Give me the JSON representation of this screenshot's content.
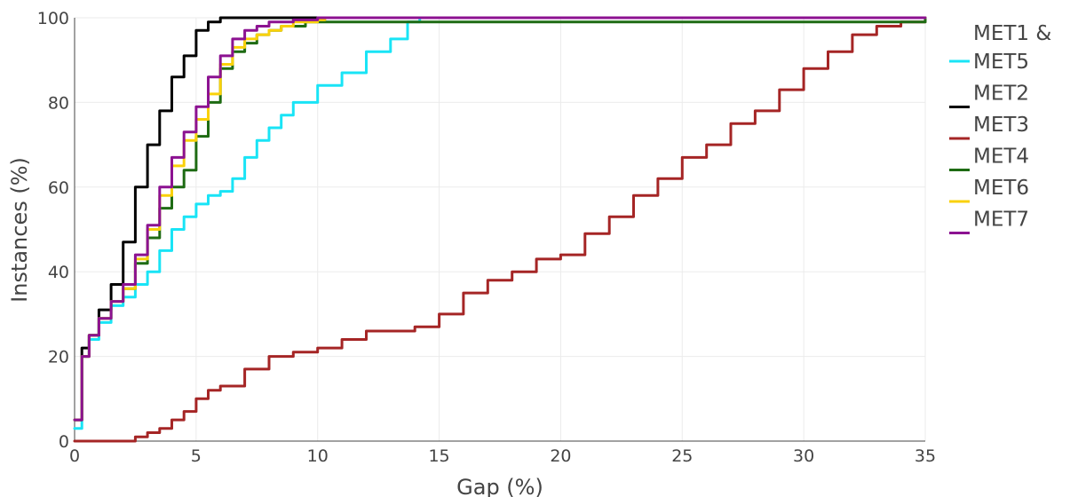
{
  "chart_data": {
    "type": "line",
    "title": "",
    "xlabel": "Gap (%)",
    "ylabel": "Instances (%)",
    "xlim": [
      0,
      35
    ],
    "ylim": [
      0,
      100
    ],
    "xticks": [
      0,
      5,
      10,
      15,
      20,
      25,
      30,
      35
    ],
    "yticks": [
      0,
      20,
      40,
      60,
      80,
      100
    ],
    "grid": true,
    "legend_position": "right",
    "series": [
      {
        "name": "MET1 & MET5",
        "color": "#19e4f6",
        "x": [
          0,
          0.3,
          0.6,
          1.0,
          1.5,
          2.0,
          2.5,
          3.0,
          3.5,
          4.0,
          4.5,
          5.0,
          5.5,
          6.0,
          6.5,
          7.0,
          7.5,
          8.0,
          8.5,
          9.0,
          10.0,
          11.0,
          12.0,
          13.0,
          13.7,
          14.2,
          14.8,
          35
        ],
        "y": [
          3,
          20,
          24,
          28,
          32,
          34,
          37,
          40,
          45,
          50,
          53,
          56,
          58,
          59,
          62,
          67,
          71,
          74,
          77,
          80,
          84,
          87,
          92,
          95,
          99,
          100,
          100,
          100
        ]
      },
      {
        "name": "MET2",
        "color": "#000000",
        "x": [
          0,
          0.3,
          0.6,
          1.0,
          1.5,
          2.0,
          2.5,
          3.0,
          3.5,
          4.0,
          4.5,
          5.0,
          5.5,
          6.0,
          7.0,
          35
        ],
        "y": [
          5,
          22,
          25,
          31,
          37,
          47,
          60,
          70,
          78,
          86,
          91,
          97,
          99,
          100,
          100,
          100
        ]
      },
      {
        "name": "MET3",
        "color": "#a52525",
        "x": [
          0,
          2.0,
          2.5,
          3.0,
          3.5,
          4.0,
          4.5,
          5.0,
          5.5,
          6.0,
          7.0,
          8.0,
          9.0,
          10.0,
          11.0,
          12.0,
          13.0,
          14.0,
          15.0,
          16.0,
          17.0,
          18.0,
          19.0,
          20.0,
          21.0,
          22.0,
          23.0,
          24.0,
          25.0,
          26.0,
          27.0,
          28.0,
          29.0,
          30.0,
          31.0,
          32.0,
          33.0,
          34.0,
          35.0
        ],
        "y": [
          0,
          0,
          1,
          2,
          3,
          5,
          7,
          10,
          12,
          13,
          17,
          20,
          21,
          22,
          24,
          26,
          26,
          27,
          30,
          35,
          38,
          40,
          43,
          44,
          49,
          53,
          58,
          62,
          67,
          70,
          75,
          78,
          83,
          88,
          92,
          96,
          98,
          99,
          100
        ]
      },
      {
        "name": "MET4",
        "color": "#1e6b13",
        "x": [
          0,
          0.3,
          0.6,
          1.0,
          1.5,
          2.0,
          2.5,
          3.0,
          3.5,
          4.0,
          4.5,
          5.0,
          5.5,
          6.0,
          6.5,
          7.0,
          7.5,
          8.0,
          8.5,
          9.0,
          9.5,
          10.0,
          35
        ],
        "y": [
          5,
          20,
          25,
          29,
          33,
          36,
          42,
          48,
          55,
          60,
          64,
          72,
          80,
          88,
          92,
          94,
          96,
          97,
          98,
          98,
          99,
          99,
          100
        ]
      },
      {
        "name": "MET6",
        "color": "#f9d10a",
        "x": [
          0,
          0.3,
          0.6,
          1.0,
          1.5,
          2.0,
          2.5,
          3.0,
          3.5,
          4.0,
          4.5,
          5.0,
          5.5,
          6.0,
          6.5,
          7.0,
          7.5,
          8.0,
          8.5,
          9.0,
          10.0,
          10.3,
          35
        ],
        "y": [
          5,
          20,
          25,
          29,
          33,
          36,
          43,
          50,
          58,
          65,
          71,
          76,
          82,
          89,
          93,
          95,
          96,
          97,
          98,
          99,
          99.5,
          100,
          100
        ]
      },
      {
        "name": "MET7",
        "color": "#8c1291",
        "x": [
          0,
          0.3,
          0.6,
          1.0,
          1.5,
          2.0,
          2.5,
          3.0,
          3.5,
          4.0,
          4.5,
          5.0,
          5.5,
          6.0,
          6.5,
          7.0,
          7.5,
          8.0,
          9.0,
          10.0,
          35
        ],
        "y": [
          5,
          20,
          25,
          29,
          33,
          37,
          44,
          51,
          60,
          67,
          73,
          79,
          86,
          91,
          95,
          97,
          98,
          99,
          99.5,
          100,
          100
        ]
      }
    ],
    "legend": [
      {
        "label_lines": [
          "MET1 &",
          "MET5"
        ],
        "color": "#19e4f6"
      },
      {
        "label_lines": [
          "MET2"
        ],
        "color": "#000000"
      },
      {
        "label_lines": [
          "MET3"
        ],
        "color": "#a52525"
      },
      {
        "label_lines": [
          "MET4"
        ],
        "color": "#1e6b13"
      },
      {
        "label_lines": [
          "MET6"
        ],
        "color": "#f9d10a"
      },
      {
        "label_lines": [
          "MET7"
        ],
        "color": "#8c1291"
      }
    ]
  }
}
